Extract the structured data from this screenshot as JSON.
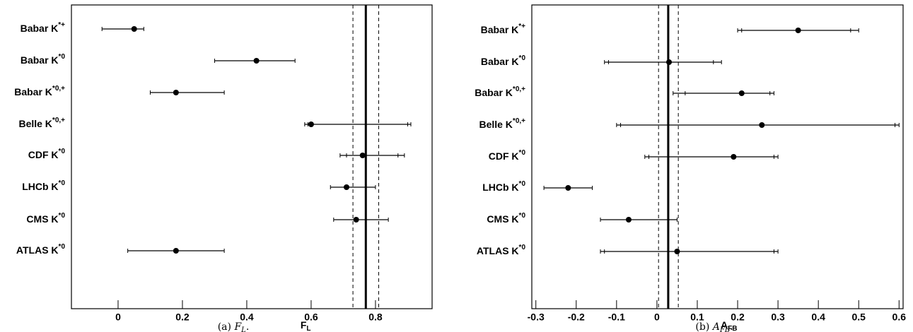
{
  "chart_data": [
    {
      "type": "errorbar",
      "categories": [
        {
          "main": "Babar K",
          "sup": "*+"
        },
        {
          "main": "Babar K",
          "sup": "*0"
        },
        {
          "main": "Babar K",
          "sup": "*0,+"
        },
        {
          "main": "Belle K",
          "sup": "*0,+"
        },
        {
          "main": "CDF K",
          "sup": "*0"
        },
        {
          "main": "LHCb K",
          "sup": "*0"
        },
        {
          "main": "CMS K",
          "sup": "*0"
        },
        {
          "main": "ATLAS K",
          "sup": "*0"
        }
      ],
      "values": [
        0.05,
        0.43,
        0.18,
        0.6,
        0.76,
        0.71,
        0.74,
        0.18
      ],
      "lower": [
        -0.05,
        0.3,
        0.1,
        0.58,
        0.69,
        0.66,
        0.67,
        0.03
      ],
      "upper": [
        0.08,
        0.55,
        0.33,
        0.91,
        0.89,
        0.8,
        0.84,
        0.33
      ],
      "inner_lower": [
        null,
        null,
        null,
        0.59,
        0.71,
        null,
        null,
        null
      ],
      "inner_upper": [
        null,
        null,
        null,
        0.9,
        0.87,
        null,
        null,
        null
      ],
      "reference": 0.77,
      "reference_band": [
        0.73,
        0.81
      ],
      "xlim": [
        -0.145,
        0.976
      ],
      "xticks": [
        0,
        0.2,
        0.4,
        0.6,
        0.8
      ],
      "xlabel": {
        "main": "F",
        "sub": "L"
      },
      "caption": {
        "prefix": "(a) ",
        "main": "F",
        "sub": "L",
        "suffix": "."
      }
    },
    {
      "type": "errorbar",
      "categories": [
        {
          "main": "Babar K",
          "sup": "*+"
        },
        {
          "main": "Babar K",
          "sup": "*0"
        },
        {
          "main": "Babar K",
          "sup": "*0,+"
        },
        {
          "main": "Belle K",
          "sup": "*0,+"
        },
        {
          "main": "CDF K",
          "sup": "*0"
        },
        {
          "main": "LHCb K",
          "sup": "*0"
        },
        {
          "main": "CMS K",
          "sup": "*0"
        },
        {
          "main": "ATLAS K",
          "sup": "*0"
        }
      ],
      "values": [
        0.35,
        0.03,
        0.21,
        0.26,
        0.19,
        -0.22,
        -0.07,
        0.05
      ],
      "lower": [
        0.2,
        -0.13,
        0.04,
        -0.1,
        -0.03,
        -0.28,
        -0.14,
        -0.14
      ],
      "upper": [
        0.5,
        0.16,
        0.29,
        0.6,
        0.3,
        -0.16,
        0.05,
        0.3
      ],
      "inner_lower": [
        0.21,
        -0.12,
        0.07,
        -0.09,
        -0.02,
        null,
        null,
        -0.13
      ],
      "inner_upper": [
        0.48,
        0.14,
        0.28,
        0.59,
        0.29,
        null,
        null,
        0.29
      ],
      "reference": 0.028,
      "reference_band": [
        0.004,
        0.053
      ],
      "xlim": [
        -0.31,
        0.61
      ],
      "xticks": [
        -0.3,
        -0.2,
        -0.1,
        0,
        0.1,
        0.2,
        0.3,
        0.4,
        0.5,
        0.6
      ],
      "xlabel": {
        "main": "A",
        "sub": "FB"
      },
      "caption": {
        "prefix": "(b) ",
        "main": "A",
        "sub": "FB",
        "suffix": "."
      }
    }
  ]
}
